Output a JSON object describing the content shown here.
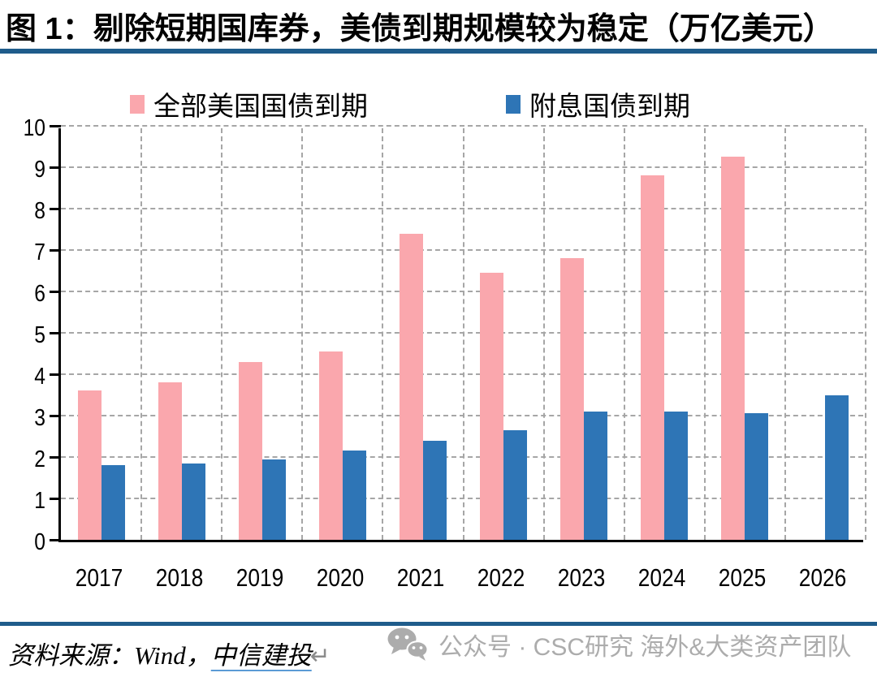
{
  "title": "图 1：剔除短期国库券，美债到期规模较为稳定（万亿美元）",
  "colors": {
    "rule_blue": "#1f5c8b",
    "grid_gray": "#a6a6a6",
    "watermark_gray": "#acacac",
    "link_underline": "#5b9bd5"
  },
  "chart_data": {
    "type": "bar",
    "title": "图 1：剔除短期国库券，美债到期规模较为稳定（万亿美元）",
    "categories": [
      "2017",
      "2018",
      "2019",
      "2020",
      "2021",
      "2022",
      "2023",
      "2024",
      "2025",
      "2026"
    ],
    "series": [
      {
        "name": "全部美国国债到期",
        "color": "#faa7ad",
        "values": [
          3.6,
          3.8,
          4.3,
          4.55,
          7.4,
          6.45,
          6.8,
          8.8,
          9.25,
          null
        ]
      },
      {
        "name": "附息国债到期",
        "color": "#2e75b6",
        "values": [
          1.8,
          1.85,
          1.95,
          2.15,
          2.4,
          2.65,
          3.1,
          3.1,
          3.05,
          3.5
        ]
      }
    ],
    "xlabel": "",
    "ylabel": "",
    "ylim": [
      0,
      10
    ],
    "yticks": [
      0,
      1,
      2,
      3,
      4,
      5,
      6,
      7,
      8,
      9,
      10
    ],
    "grid": true,
    "legend_position": "top"
  },
  "footer": {
    "source_prefix": "资料来源：Wind，",
    "source_org": "中信建投",
    "return_mark": "↵",
    "watermark": "公众号 · CSC研究 海外&大类资产团队"
  }
}
